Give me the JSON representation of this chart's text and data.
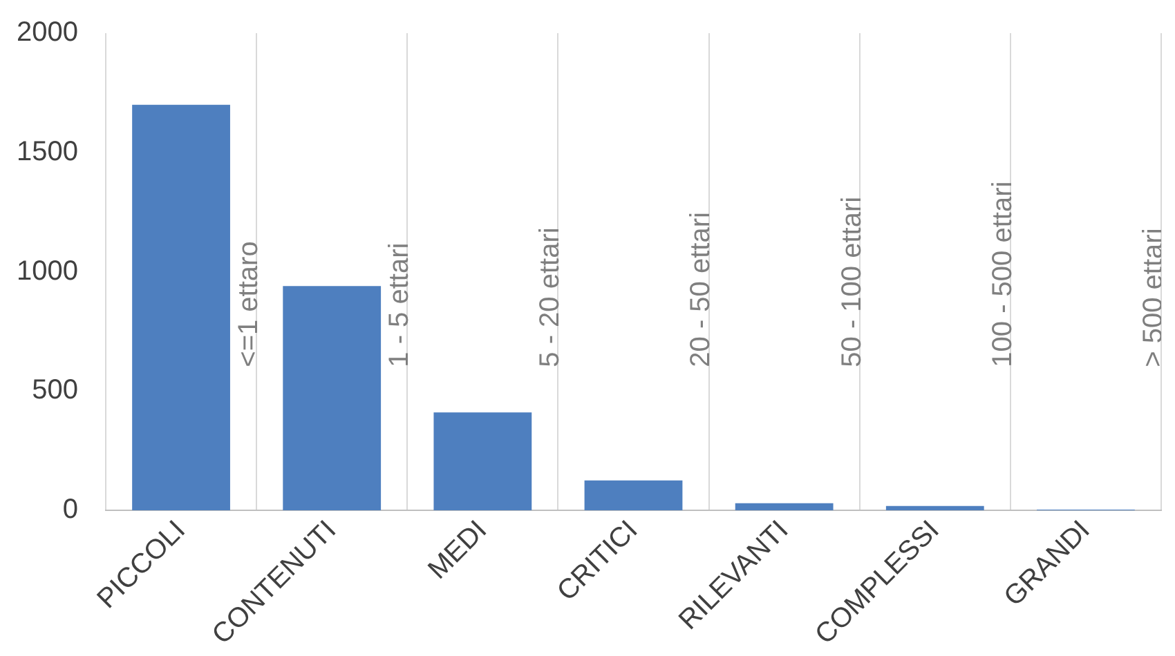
{
  "chart_data": {
    "type": "bar",
    "categories": [
      "PICCOLI",
      "CONTENUTI",
      "MEDI",
      "CRITICI",
      "RILEVANTI",
      "COMPLESSI",
      "GRANDI"
    ],
    "values": [
      1700,
      940,
      410,
      125,
      30,
      18,
      3
    ],
    "color": "#4e7fbf",
    "ylim": [
      0,
      2000
    ],
    "yticks": [
      0,
      500,
      1000,
      1500,
      2000
    ],
    "grid": "x",
    "legend": false,
    "annotations": [
      "<=1 ettaro",
      "1 - 5 ettari",
      "5 - 20 ettari",
      "20 - 50 ettari",
      "50 - 100 ettari",
      "100 - 500 ettari",
      "> 500 ettari"
    ]
  }
}
